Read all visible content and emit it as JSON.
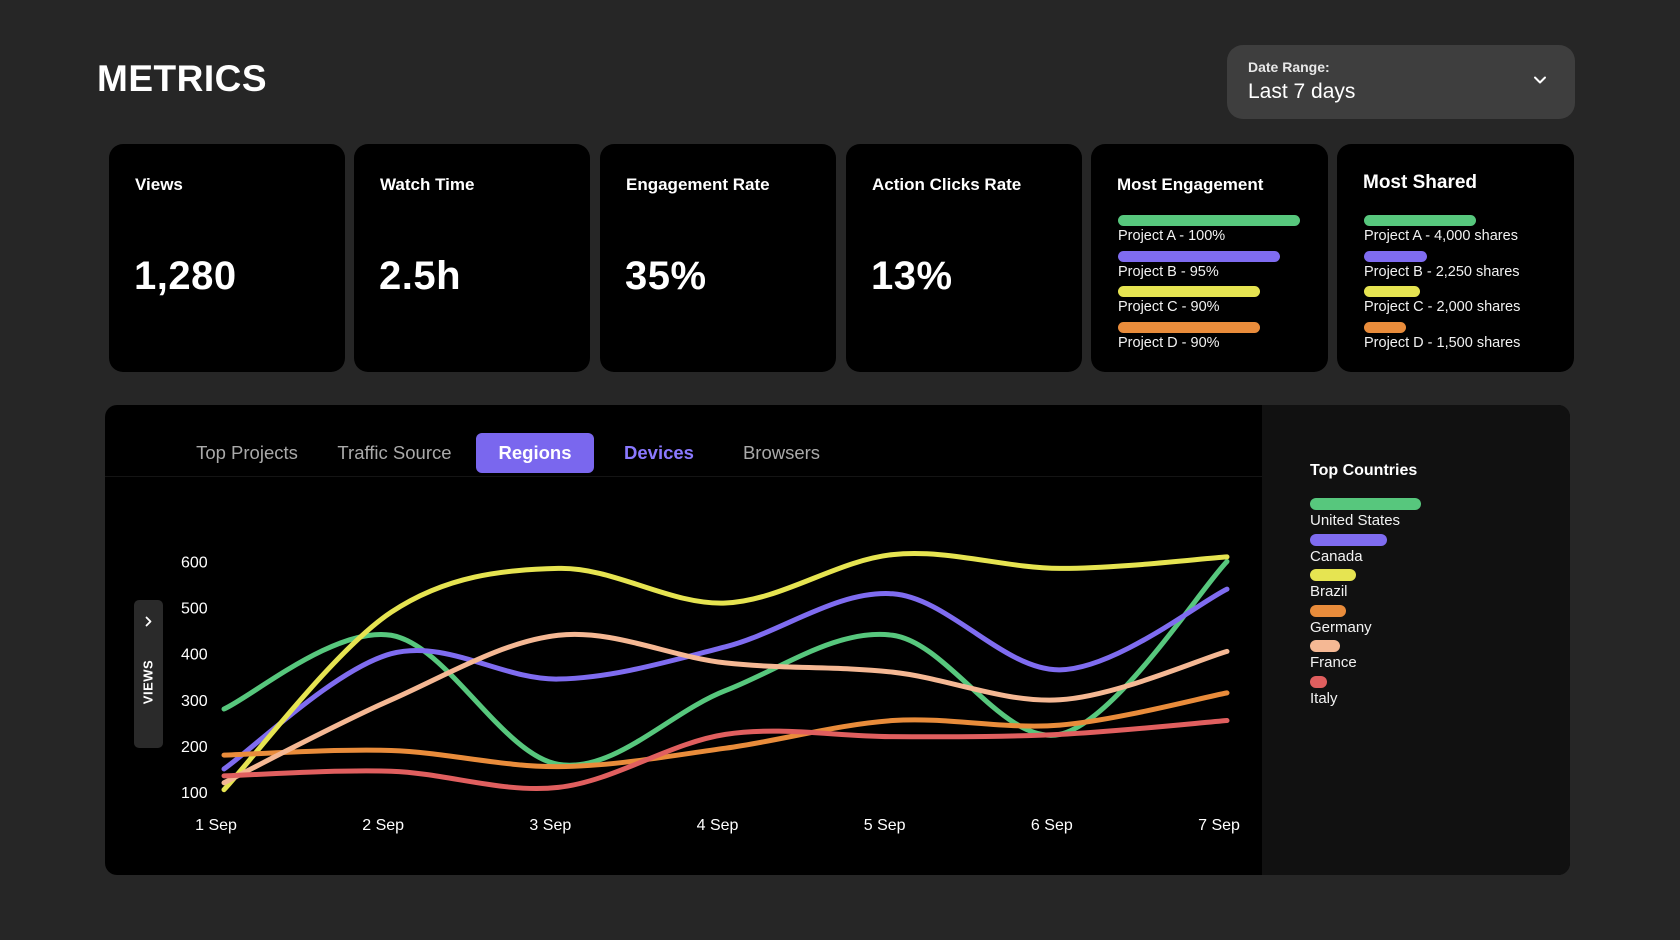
{
  "header": {
    "title": "METRICS"
  },
  "date_range": {
    "label": "Date Range:",
    "value": "Last 7 days"
  },
  "cards": [
    {
      "title": "Views",
      "value": "1,280"
    },
    {
      "title": "Watch Time",
      "value": "2.5h"
    },
    {
      "title": "Engagement Rate",
      "value": "35%"
    },
    {
      "title": "Action Clicks Rate",
      "value": "13%"
    }
  ],
  "most_engagement": {
    "title": "Most Engagement",
    "items": [
      {
        "label": "Project A - 100%",
        "fraction": 1.0,
        "color": "#57c77d"
      },
      {
        "label": "Project B - 95%",
        "fraction": 0.89,
        "color": "#7f6cf0"
      },
      {
        "label": "Project C - 90%",
        "fraction": 0.78,
        "color": "#e6e451"
      },
      {
        "label": "Project D - 90%",
        "fraction": 0.78,
        "color": "#e98c3b"
      }
    ]
  },
  "most_shared": {
    "title": "Most Shared",
    "items": [
      {
        "label": "Project A - 4,000 shares",
        "shares": 4000,
        "color": "#57c77d"
      },
      {
        "label": "Project B - 2,250 shares",
        "shares": 2250,
        "color": "#7f6cf0"
      },
      {
        "label": "Project C - 2,000 shares",
        "shares": 2000,
        "color": "#e6e451"
      },
      {
        "label": "Project D - 1,500 shares",
        "shares": 1500,
        "color": "#e98c3b"
      }
    ]
  },
  "tabs": [
    {
      "label": "Top Projects",
      "state": "normal"
    },
    {
      "label": "Traffic Source",
      "state": "normal"
    },
    {
      "label": "Regions",
      "state": "active"
    },
    {
      "label": "Devices",
      "state": "hover"
    },
    {
      "label": "Browsers",
      "state": "normal"
    }
  ],
  "views_toggle": {
    "label": "VIEWS"
  },
  "chart_data": {
    "type": "line",
    "ylabel": "VIEWS",
    "x": [
      "1 Sep",
      "2 Sep",
      "3 Sep",
      "4 Sep",
      "5 Sep",
      "6 Sep",
      "7 Sep"
    ],
    "yticks": [
      100,
      200,
      300,
      400,
      500,
      600
    ],
    "ylim": [
      100,
      600
    ],
    "series": [
      {
        "name": "United States",
        "color": "#57c77d",
        "values": [
          280,
          440,
          160,
          320,
          440,
          225,
          600
        ]
      },
      {
        "name": "Canada",
        "color": "#7f6cf0",
        "values": [
          150,
          400,
          345,
          415,
          530,
          365,
          540
        ]
      },
      {
        "name": "Brazil",
        "color": "#e6e451",
        "values": [
          105,
          490,
          585,
          510,
          615,
          585,
          610
        ]
      },
      {
        "name": "Germany",
        "color": "#e98c3b",
        "values": [
          180,
          190,
          155,
          195,
          255,
          245,
          315
        ]
      },
      {
        "name": "France",
        "color": "#f5b894",
        "values": [
          120,
          300,
          440,
          380,
          360,
          300,
          405
        ]
      },
      {
        "name": "Italy",
        "color": "#e05f5f",
        "values": [
          135,
          145,
          110,
          225,
          220,
          225,
          255
        ]
      }
    ]
  },
  "legend": {
    "title": "Top Countries",
    "items": [
      {
        "label": "United States",
        "fraction": 1.0,
        "color": "#57c77d"
      },
      {
        "label": "Canada",
        "fraction": 0.69,
        "color": "#7f6cf0"
      },
      {
        "label": "Brazil",
        "fraction": 0.41,
        "color": "#e6e451"
      },
      {
        "label": "Germany",
        "fraction": 0.32,
        "color": "#e98c3b"
      },
      {
        "label": "France",
        "fraction": 0.27,
        "color": "#f5b894"
      },
      {
        "label": "Italy",
        "fraction": 0.15,
        "color": "#e05f5f"
      }
    ]
  }
}
